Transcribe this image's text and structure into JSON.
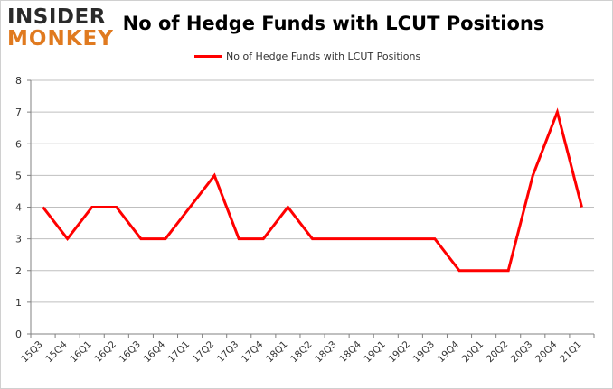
{
  "logo": {
    "line1": "INSIDER",
    "line2": "MONKEY"
  },
  "colors": {
    "series": "#ff0000",
    "grid": "#bfbfbf",
    "axis": "#808080",
    "logo_dark": "#2a2a2a",
    "logo_accent": "#e07a1f"
  },
  "chart_data": {
    "type": "line",
    "title": "No of Hedge Funds with LCUT Positions",
    "xlabel": "",
    "ylabel": "",
    "ylim": [
      0,
      8
    ],
    "yticks": [
      0,
      1,
      2,
      3,
      4,
      5,
      6,
      7,
      8
    ],
    "grid": true,
    "legend_position": "top-center",
    "categories": [
      "15Q3",
      "15Q4",
      "16Q1",
      "16Q2",
      "16Q3",
      "16Q4",
      "17Q1",
      "17Q2",
      "17Q3",
      "17Q4",
      "18Q1",
      "18Q2",
      "18Q3",
      "18Q4",
      "19Q1",
      "19Q2",
      "19Q3",
      "19Q4",
      "20Q1",
      "20Q2",
      "20Q3",
      "20Q4",
      "21Q1"
    ],
    "series": [
      {
        "name": "No of Hedge Funds with LCUT Positions",
        "values": [
          4,
          3,
          4,
          4,
          3,
          3,
          4,
          5,
          3,
          3,
          4,
          3,
          3,
          3,
          3,
          3,
          3,
          2,
          2,
          2,
          5,
          7,
          4
        ]
      }
    ]
  }
}
